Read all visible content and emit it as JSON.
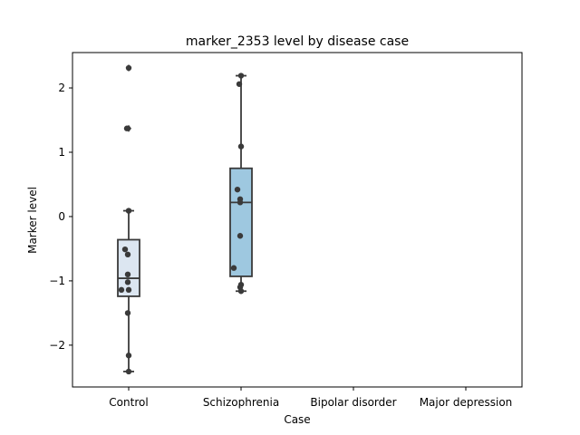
{
  "chart_data": {
    "type": "box",
    "title": "marker_2353 level by disease case",
    "xlabel": "Case",
    "ylabel": "Marker level",
    "categories": [
      "Control",
      "Schizophrenia",
      "Bipolar disorder",
      "Major depression"
    ],
    "ylim": [
      -2.65,
      2.55
    ],
    "yticks": [
      -2,
      -1,
      0,
      1,
      2
    ],
    "ytick_labels": [
      "−2",
      "−1",
      "0",
      "1",
      "2"
    ],
    "grid": false,
    "box_colors": [
      "#dce6f1",
      "#9ec8e0"
    ],
    "boxes": [
      {
        "category": "Control",
        "whisker_low": -2.41,
        "q1": -1.24,
        "median": -0.96,
        "q3": -0.36,
        "whisker_high": 0.09,
        "outliers": [
          1.37,
          2.31
        ]
      },
      {
        "category": "Schizophrenia",
        "whisker_low": -1.16,
        "q1": -0.93,
        "median": 0.22,
        "q3": 0.75,
        "whisker_high": 2.19,
        "outliers": []
      }
    ],
    "points": [
      {
        "category": "Control",
        "values": [
          2.31,
          1.37,
          0.09,
          -0.51,
          -0.59,
          -0.9,
          -1.02,
          -1.14,
          -1.14,
          -1.5,
          -2.16,
          -2.41
        ]
      },
      {
        "category": "Schizophrenia",
        "values": [
          2.19,
          2.06,
          1.09,
          0.42,
          0.27,
          0.22,
          -0.3,
          -0.8,
          -1.06,
          -1.1,
          -1.16
        ]
      }
    ]
  }
}
